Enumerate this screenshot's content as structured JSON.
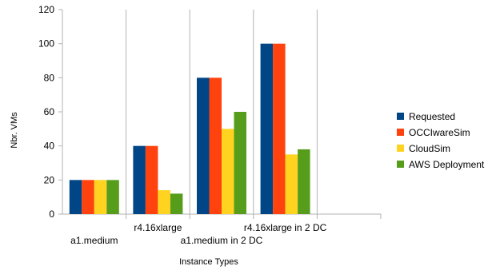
{
  "chart_data": {
    "type": "bar",
    "categories": [
      "a1.medium",
      "r4.16xlarge",
      "a1.medium in 2 DC",
      "r4.16xlarge in 2 DC"
    ],
    "series": [
      {
        "name": "Requested",
        "color": "#004586",
        "values": [
          20,
          40,
          80,
          100
        ]
      },
      {
        "name": "OCCIwareSim",
        "color": "#ff420e",
        "values": [
          20,
          40,
          80,
          100
        ]
      },
      {
        "name": "CloudSim",
        "color": "#ffd320",
        "values": [
          20,
          14,
          50,
          35
        ]
      },
      {
        "name": "AWS Deployment",
        "color": "#579d1c",
        "values": [
          20,
          12,
          60,
          38
        ]
      }
    ],
    "xlabel": "Instance Types",
    "ylabel": "Nbr. VMs",
    "ylim": [
      0,
      120
    ],
    "yticks": [
      0,
      20,
      40,
      60,
      80,
      100,
      120
    ],
    "grid": false,
    "legend_position": "right"
  }
}
